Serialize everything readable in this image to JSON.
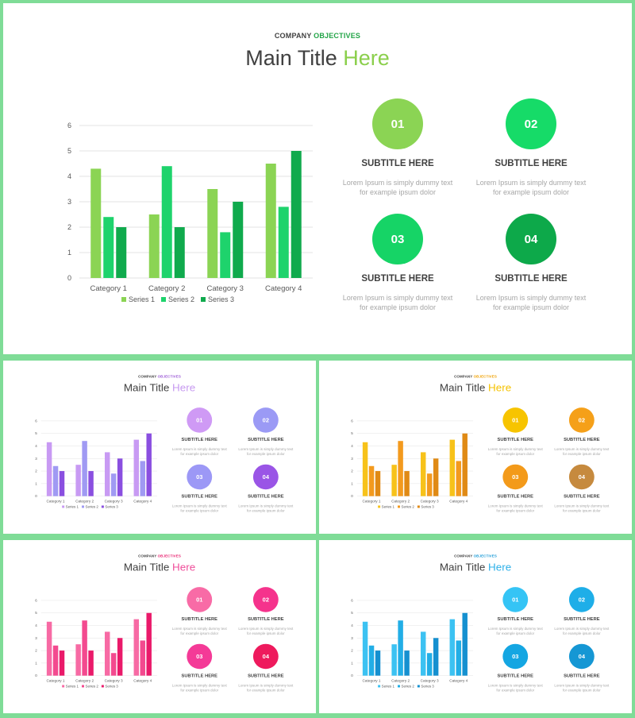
{
  "slides": [
    {
      "kicker_a": "COMPANY",
      "kicker_b": "OBJECTIVES",
      "title_a": "Main Title",
      "title_b": "Here",
      "accent": "#22a447",
      "title_accent": "#8bcf4c",
      "series_colors": [
        "#8bd454",
        "#1ed36c",
        "#10aa4d"
      ],
      "circle_colors": [
        "#8bd454",
        "#16db68",
        "#16d466",
        "#0da94a"
      ],
      "features": [
        {
          "num": "01",
          "subtitle": "SUBTITLE HERE",
          "line1": "Lorem Ipsum is simply dummy text",
          "line2": "for example  ipsum dolor"
        },
        {
          "num": "02",
          "subtitle": "SUBTITLE HERE",
          "line1": "Lorem Ipsum is simply dummy text",
          "line2": "for example  ipsum dolor"
        },
        {
          "num": "03",
          "subtitle": "SUBTITLE HERE",
          "line1": "Lorem Ipsum is simply dummy text",
          "line2": "for example  ipsum dolor"
        },
        {
          "num": "04",
          "subtitle": "SUBTITLE HERE",
          "line1": "Lorem Ipsum is simply dummy text",
          "line2": "for example  ipsum dolor"
        }
      ]
    },
    {
      "kicker_a": "COMPANY",
      "kicker_b": "OBJECTIVES",
      "title_a": "Main Title",
      "title_b": "Here",
      "accent": "#9b59d6",
      "title_accent": "#c79af0",
      "series_colors": [
        "#c89af3",
        "#a09af3",
        "#8a4fe0"
      ],
      "circle_colors": [
        "#cf9af5",
        "#9b9af5",
        "#9c98f6",
        "#9a55e6"
      ],
      "features": [
        {
          "num": "01",
          "subtitle": "SUBTITLE HERE",
          "line1": "Lorem Ipsum is simply dummy text",
          "line2": "for example  ipsum dolor"
        },
        {
          "num": "02",
          "subtitle": "SUBTITLE HERE",
          "line1": "Lorem Ipsum is simply dummy text",
          "line2": "for example  ipsum dolor"
        },
        {
          "num": "03",
          "subtitle": "SUBTITLE HERE",
          "line1": "Lorem Ipsum is simply dummy text",
          "line2": "for example  ipsum dolor"
        },
        {
          "num": "04",
          "subtitle": "SUBTITLE HERE",
          "line1": "Lorem Ipsum is simply dummy text",
          "line2": "for example  ipsum dolor"
        }
      ]
    },
    {
      "kicker_a": "COMPANY",
      "kicker_b": "OBJECTIVES",
      "title_a": "Main Title",
      "title_b": "Here",
      "accent": "#f0a000",
      "title_accent": "#f5c200",
      "series_colors": [
        "#f7c21a",
        "#f39a1e",
        "#e08a15"
      ],
      "circle_colors": [
        "#f7c400",
        "#f5a019",
        "#f39a1a",
        "#c68a3e"
      ],
      "features": [
        {
          "num": "01",
          "subtitle": "SUBTITLE HERE",
          "line1": "Lorem Ipsum is simply dummy text",
          "line2": "for example  ipsum dolor"
        },
        {
          "num": "02",
          "subtitle": "SUBTITLE HERE",
          "line1": "Lorem Ipsum is simply dummy text",
          "line2": "for example  ipsum dolor"
        },
        {
          "num": "03",
          "subtitle": "SUBTITLE HERE",
          "line1": "Lorem Ipsum is simply dummy text",
          "line2": "for example  ipsum dolor"
        },
        {
          "num": "04",
          "subtitle": "SUBTITLE HERE",
          "line1": "Lorem Ipsum is simply dummy text",
          "line2": "for example  ipsum dolor"
        }
      ]
    },
    {
      "kicker_a": "COMPANY",
      "kicker_b": "OBJECTIVES",
      "title_a": "Main Title",
      "title_b": "Here",
      "accent": "#e8226f",
      "title_accent": "#ef4d9a",
      "series_colors": [
        "#f76aa4",
        "#f34a8f",
        "#ea1a6a"
      ],
      "circle_colors": [
        "#f86ba6",
        "#f5338c",
        "#f43a97",
        "#ee1a5d"
      ],
      "features": [
        {
          "num": "01",
          "subtitle": "SUBTITLE HERE",
          "line1": "Lorem Ipsum is simply dummy text",
          "line2": "for example  ipsum dolor"
        },
        {
          "num": "02",
          "subtitle": "SUBTITLE HERE",
          "line1": "Lorem Ipsum is simply dummy text",
          "line2": "for example  ipsum dolor"
        },
        {
          "num": "03",
          "subtitle": "SUBTITLE HERE",
          "line1": "Lorem Ipsum is simply dummy text",
          "line2": "for example  ipsum dolor"
        },
        {
          "num": "04",
          "subtitle": "SUBTITLE HERE",
          "line1": "Lorem Ipsum is simply dummy text",
          "line2": "for example  ipsum dolor"
        }
      ]
    },
    {
      "kicker_a": "COMPANY",
      "kicker_b": "OBJECTIVES",
      "title_a": "Main Title",
      "title_b": "Here",
      "accent": "#1a9ad6",
      "title_accent": "#2db0e8",
      "series_colors": [
        "#3cc2f2",
        "#22aee6",
        "#1590d0"
      ],
      "circle_colors": [
        "#35c4f5",
        "#1eaee8",
        "#14a6e2",
        "#1597d4"
      ],
      "features": [
        {
          "num": "01",
          "subtitle": "SUBTITLE HERE",
          "line1": "Lorem Ipsum is simply dummy text",
          "line2": "for example  ipsum dolor"
        },
        {
          "num": "02",
          "subtitle": "SUBTITLE HERE",
          "line1": "Lorem Ipsum is simply dummy text",
          "line2": "for example  ipsum dolor"
        },
        {
          "num": "03",
          "subtitle": "SUBTITLE HERE",
          "line1": "Lorem Ipsum is simply dummy text",
          "line2": "for example  ipsum dolor"
        },
        {
          "num": "04",
          "subtitle": "SUBTITLE HERE",
          "line1": "Lorem Ipsum is simply dummy text",
          "line2": "for example  ipsum dolor"
        }
      ]
    }
  ],
  "chart_data": {
    "type": "bar",
    "categories": [
      "Category 1",
      "Category 2",
      "Category 3",
      "Category 4"
    ],
    "series": [
      {
        "name": "Series 1",
        "values": [
          4.3,
          2.5,
          3.5,
          4.5
        ]
      },
      {
        "name": "Series 2",
        "values": [
          2.4,
          4.4,
          1.8,
          2.8
        ]
      },
      {
        "name": "Series 3",
        "values": [
          2,
          2,
          3,
          5
        ]
      }
    ],
    "ylim": [
      0,
      6
    ],
    "yticks": [
      "0",
      "1",
      "2",
      "3",
      "4",
      "5",
      "6"
    ],
    "grid": true,
    "legend": "bottom"
  }
}
